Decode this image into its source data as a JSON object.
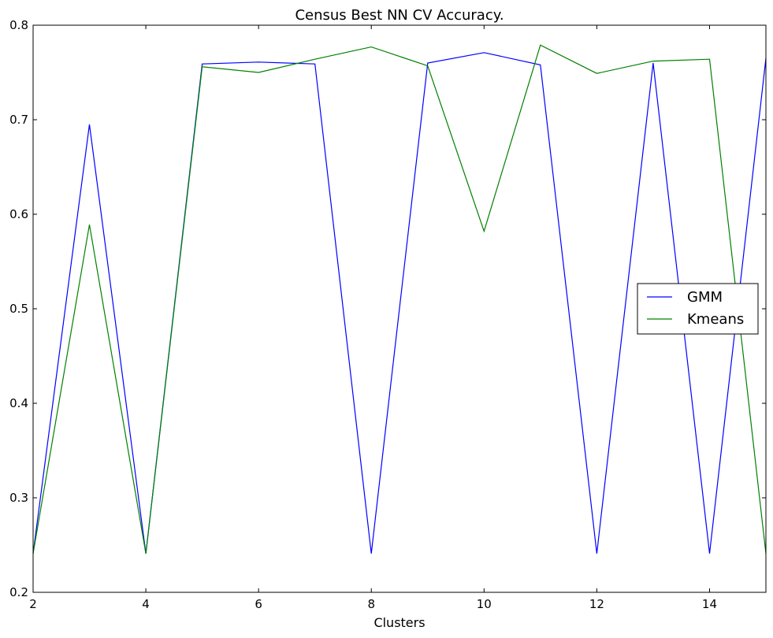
{
  "chart_data": {
    "type": "line",
    "title": "Census Best NN CV Accuracy.",
    "xlabel": "Clusters",
    "ylabel": "",
    "xlim": [
      2,
      15
    ],
    "ylim": [
      0.2,
      0.8
    ],
    "xticks": [
      2,
      4,
      6,
      8,
      10,
      12,
      14
    ],
    "yticks": [
      0.2,
      0.3,
      0.4,
      0.5,
      0.6,
      0.7,
      0.8
    ],
    "grid": false,
    "legend_position": "center-right",
    "x": [
      2,
      3,
      4,
      5,
      6,
      7,
      8,
      9,
      10,
      11,
      12,
      13,
      14,
      15
    ],
    "series": [
      {
        "name": "GMM",
        "color": "#0000ff",
        "values": [
          0.241,
          0.695,
          0.241,
          0.759,
          0.761,
          0.759,
          0.241,
          0.76,
          0.771,
          0.758,
          0.241,
          0.76,
          0.241,
          0.765
        ]
      },
      {
        "name": "Kmeans",
        "color": "#008000",
        "values": [
          0.241,
          0.589,
          0.241,
          0.756,
          0.75,
          0.764,
          0.777,
          0.757,
          0.582,
          0.779,
          0.749,
          0.762,
          0.764,
          0.241
        ]
      }
    ]
  }
}
